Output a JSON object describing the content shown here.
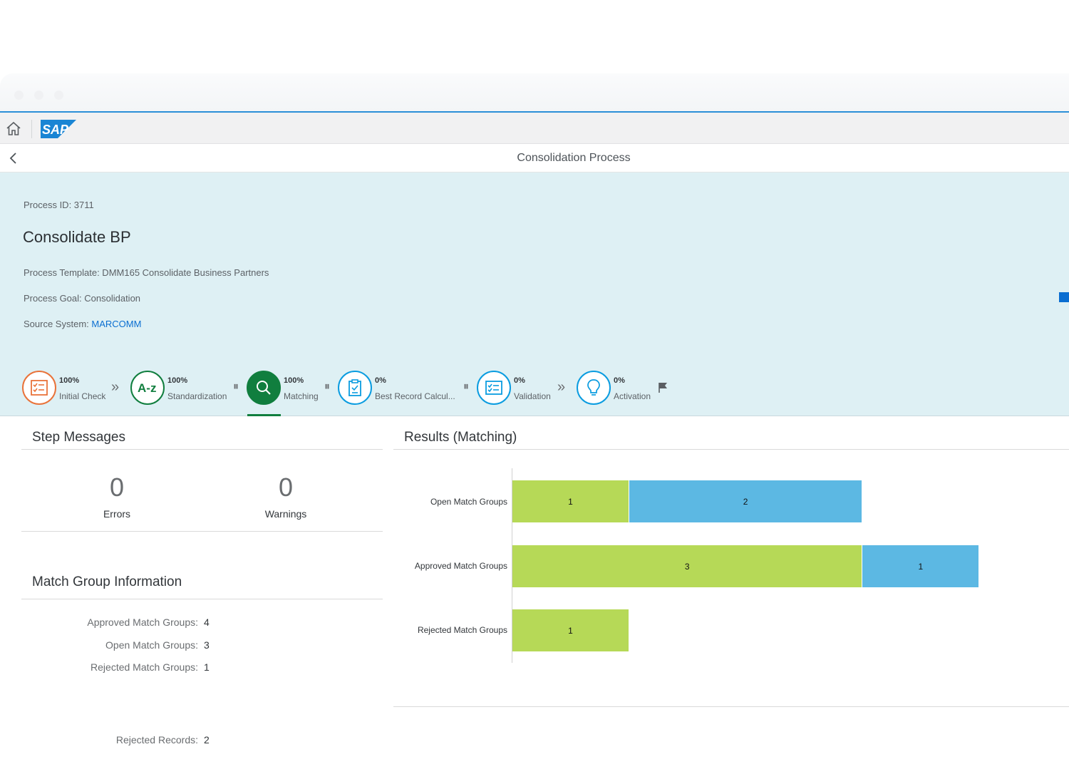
{
  "shell": {
    "logo_text": "SAP"
  },
  "header": {
    "title": "Consolidation Process"
  },
  "object": {
    "process_id": "Process ID: 3711",
    "title": "Consolidate BP",
    "template": "Process Template: DMM165 Consolidate Business Partners",
    "goal": "Process Goal: Consolidation",
    "source_label": "Source System: ",
    "source_value": "MARCOMM"
  },
  "steps": [
    {
      "pct": "100%",
      "name": "Initial Check",
      "icon": "checklist-icon",
      "color": "#e9733a"
    },
    {
      "pct": "100%",
      "name": "Standardization",
      "icon": "a-z-icon",
      "color": "#107e3e"
    },
    {
      "pct": "100%",
      "name": "Matching",
      "icon": "search-icon",
      "color": "#107e3e"
    },
    {
      "pct": "0%",
      "name": "Best Record Calcul...",
      "icon": "clipboard-icon",
      "color": "#0a9ce0"
    },
    {
      "pct": "0%",
      "name": "Validation",
      "icon": "validation-icon",
      "color": "#0a9ce0"
    },
    {
      "pct": "0%",
      "name": "Activation",
      "icon": "lightbulb-icon",
      "color": "#0a9ce0"
    }
  ],
  "step_messages": {
    "title": "Step Messages",
    "errors_value": "0",
    "errors_label": "Errors",
    "warnings_value": "0",
    "warnings_label": "Warnings"
  },
  "match_info": {
    "title": "Match Group Information",
    "rows": [
      {
        "label": "Approved Match Groups:",
        "value": "4"
      },
      {
        "label": "Open Match Groups:",
        "value": "3"
      },
      {
        "label": "Rejected Match Groups:",
        "value": "1"
      }
    ],
    "rejected_records_label": "Rejected Records:",
    "rejected_records_value": "2"
  },
  "results": {
    "title": "Results (Matching)"
  },
  "colors": {
    "green_series": "#b6d957",
    "blue_series": "#5cb8e3",
    "header_bg": "#def0f4",
    "accent": "#0a6ed1"
  },
  "chart_data": {
    "type": "bar",
    "orientation": "horizontal",
    "stacked": true,
    "categories": [
      "Open Match Groups",
      "Approved Match Groups",
      "Rejected Match Groups"
    ],
    "series": [
      {
        "values": [
          1,
          3,
          1
        ]
      },
      {
        "values": [
          2,
          1,
          0
        ]
      }
    ],
    "xlim": [
      0,
      5.75
    ],
    "grid": false
  }
}
